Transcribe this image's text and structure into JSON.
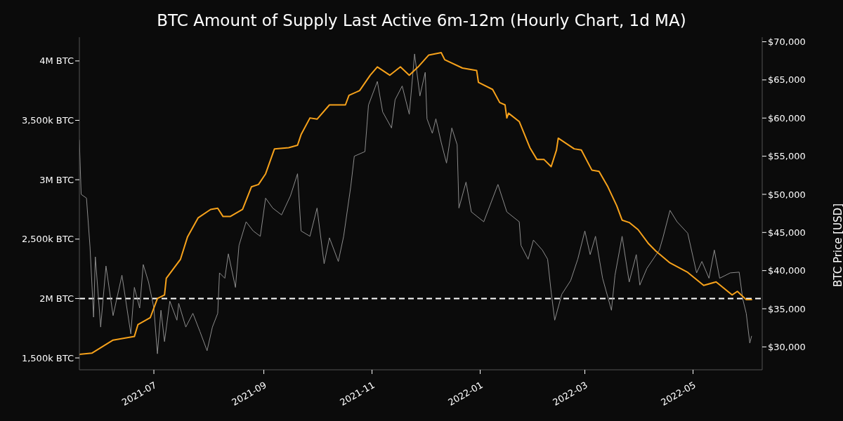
{
  "chart_data": {
    "type": "line",
    "title": "BTC Amount of Supply Last Active 6m-12m (Hourly Chart, 1d MA)",
    "y2label": "BTC Price [USD]",
    "xlim": [
      "2021-05-20",
      "2022-06-09"
    ],
    "xticks": [
      "2021-07",
      "2021-09",
      "2021-11",
      "2022-01",
      "2022-03",
      "2022-05"
    ],
    "ylim": [
      1400000,
      4200000
    ],
    "yticks": [
      {
        "value": 1500000,
        "label": "1,500k BTC"
      },
      {
        "value": 2000000,
        "label": "2M BTC"
      },
      {
        "value": 2500000,
        "label": "2,500k BTC"
      },
      {
        "value": 3000000,
        "label": "3M BTC"
      },
      {
        "value": 3500000,
        "label": "3,500k BTC"
      },
      {
        "value": 4000000,
        "label": "4M BTC"
      }
    ],
    "y2lim": [
      27000,
      70600
    ],
    "y2ticks": [
      {
        "value": 30000,
        "label": "$30,000"
      },
      {
        "value": 35000,
        "label": "$35,000"
      },
      {
        "value": 40000,
        "label": "$40,000"
      },
      {
        "value": 45000,
        "label": "$45,000"
      },
      {
        "value": 50000,
        "label": "$50,000"
      },
      {
        "value": 55000,
        "label": "$55,000"
      },
      {
        "value": 60000,
        "label": "$60,000"
      },
      {
        "value": 65000,
        "label": "$65,000"
      },
      {
        "value": 70000,
        "label": "$70,000"
      }
    ],
    "ref_lines": [
      {
        "axis": "y",
        "value": 2000000,
        "color": "#ffffff",
        "line_style": "dashed"
      }
    ],
    "series": [
      {
        "color": "#8c8c8c",
        "axis": "y2",
        "x": [
          "2021-05-20",
          "2021-05-21",
          "2021-05-24",
          "2021-05-26",
          "2021-05-28",
          "2021-05-29",
          "2021-06-01",
          "2021-06-04",
          "2021-06-08",
          "2021-06-13",
          "2021-06-18",
          "2021-06-20",
          "2021-06-23",
          "2021-06-25",
          "2021-06-28",
          "2021-07-01",
          "2021-07-03",
          "2021-07-05",
          "2021-07-07",
          "2021-07-10",
          "2021-07-14",
          "2021-07-15",
          "2021-07-19",
          "2021-07-23",
          "2021-07-27",
          "2021-07-31",
          "2021-08-03",
          "2021-08-06",
          "2021-08-07",
          "2021-08-10",
          "2021-08-12",
          "2021-08-16",
          "2021-08-18",
          "2021-08-22",
          "2021-08-26",
          "2021-08-30",
          "2021-09-02",
          "2021-09-06",
          "2021-09-11",
          "2021-09-16",
          "2021-09-20",
          "2021-09-22",
          "2021-09-27",
          "2021-10-01",
          "2021-10-05",
          "2021-10-08",
          "2021-10-13",
          "2021-10-16",
          "2021-10-20",
          "2021-10-22",
          "2021-10-28",
          "2021-10-30",
          "2021-11-04",
          "2021-11-07",
          "2021-11-12",
          "2021-11-14",
          "2021-11-18",
          "2021-11-22",
          "2021-11-25",
          "2021-11-28",
          "2021-12-01",
          "2021-12-02",
          "2021-12-05",
          "2021-12-07",
          "2021-12-10",
          "2021-12-13",
          "2021-12-16",
          "2021-12-19",
          "2021-12-20",
          "2021-12-24",
          "2021-12-27",
          "2022-01-03",
          "2022-01-11",
          "2022-01-16",
          "2022-01-23",
          "2022-01-24",
          "2022-01-28",
          "2022-01-31",
          "2022-02-05",
          "2022-02-08",
          "2022-02-10",
          "2022-02-12",
          "2022-02-16",
          "2022-02-21",
          "2022-02-25",
          "2022-03-01",
          "2022-03-04",
          "2022-03-07",
          "2022-03-11",
          "2022-03-16",
          "2022-03-18",
          "2022-03-22",
          "2022-03-26",
          "2022-03-30",
          "2022-04-01",
          "2022-04-05",
          "2022-04-12",
          "2022-04-14",
          "2022-04-18",
          "2022-04-22",
          "2022-04-28",
          "2022-05-03",
          "2022-05-06",
          "2022-05-10",
          "2022-05-13",
          "2022-05-16",
          "2022-05-22",
          "2022-05-27",
          "2022-05-29",
          "2022-05-31",
          "2022-06-02",
          "2022-06-03"
        ],
        "values": [
          57100,
          50000,
          49500,
          43100,
          33900,
          41800,
          32600,
          40600,
          34100,
          39400,
          31700,
          37800,
          35100,
          40800,
          38500,
          35100,
          29100,
          34800,
          30700,
          36000,
          33500,
          35700,
          32600,
          34400,
          32000,
          29500,
          32600,
          34400,
          39700,
          39000,
          42200,
          37800,
          43300,
          46400,
          45200,
          44500,
          49500,
          48200,
          47300,
          49800,
          52700,
          45200,
          44500,
          48200,
          40900,
          44300,
          41200,
          44500,
          51000,
          55000,
          55600,
          61700,
          64800,
          60800,
          58700,
          62400,
          64200,
          60500,
          68400,
          62900,
          66000,
          59900,
          58000,
          59900,
          56800,
          54100,
          58700,
          56500,
          48200,
          51600,
          47700,
          46400,
          51300,
          47700,
          46400,
          43300,
          41500,
          44000,
          42700,
          41500,
          37200,
          33500,
          36900,
          38700,
          41500,
          45200,
          42100,
          44500,
          39000,
          34800,
          39400,
          44500,
          38500,
          42100,
          38100,
          40300,
          42700,
          44300,
          47900,
          46400,
          44900,
          39700,
          41200,
          39000,
          42700,
          39000,
          39700,
          39800,
          36300,
          34400,
          30500,
          31400
        ]
      },
      {
        "color": "#f7a21b",
        "x": [
          "2021-05-20",
          "2021-05-27",
          "2021-06-08",
          "2021-06-20",
          "2021-06-22",
          "2021-06-29",
          "2021-07-03",
          "2021-07-07",
          "2021-07-08",
          "2021-07-16",
          "2021-07-20",
          "2021-07-26",
          "2021-08-02",
          "2021-08-06",
          "2021-08-09",
          "2021-08-13",
          "2021-08-20",
          "2021-08-25",
          "2021-08-29",
          "2021-09-02",
          "2021-09-07",
          "2021-09-15",
          "2021-09-20",
          "2021-09-22",
          "2021-09-27",
          "2021-10-01",
          "2021-10-08",
          "2021-10-17",
          "2021-10-19",
          "2021-10-25",
          "2021-10-31",
          "2021-11-04",
          "2021-11-11",
          "2021-11-17",
          "2021-11-22",
          "2021-11-27",
          "2021-12-03",
          "2021-12-10",
          "2021-12-12",
          "2021-12-22",
          "2021-12-30",
          "2021-12-31",
          "2022-01-08",
          "2022-01-12",
          "2022-01-15",
          "2022-01-16",
          "2022-01-17",
          "2022-01-23",
          "2022-01-29",
          "2022-02-02",
          "2022-02-06",
          "2022-02-10",
          "2022-02-13",
          "2022-02-14",
          "2022-02-23",
          "2022-02-27",
          "2022-03-05",
          "2022-03-09",
          "2022-03-14",
          "2022-03-19",
          "2022-03-22",
          "2022-03-26",
          "2022-03-31",
          "2022-04-06",
          "2022-04-10",
          "2022-04-18",
          "2022-04-28",
          "2022-05-07",
          "2022-05-14",
          "2022-05-23",
          "2022-05-26",
          "2022-05-31",
          "2022-06-03"
        ],
        "values": [
          1530000,
          1540000,
          1650000,
          1680000,
          1780000,
          1840000,
          2000000,
          2030000,
          2170000,
          2330000,
          2520000,
          2680000,
          2750000,
          2760000,
          2690000,
          2690000,
          2750000,
          2940000,
          2960000,
          3050000,
          3260000,
          3270000,
          3290000,
          3380000,
          3520000,
          3510000,
          3630000,
          3630000,
          3710000,
          3750000,
          3880000,
          3950000,
          3880000,
          3950000,
          3880000,
          3950000,
          4050000,
          4070000,
          4010000,
          3940000,
          3920000,
          3820000,
          3760000,
          3650000,
          3630000,
          3520000,
          3560000,
          3490000,
          3270000,
          3170000,
          3170000,
          3110000,
          3250000,
          3350000,
          3260000,
          3250000,
          3080000,
          3070000,
          2940000,
          2780000,
          2660000,
          2640000,
          2580000,
          2460000,
          2400000,
          2300000,
          2220000,
          2110000,
          2140000,
          2030000,
          2060000,
          1990000,
          1990000
        ]
      }
    ]
  }
}
